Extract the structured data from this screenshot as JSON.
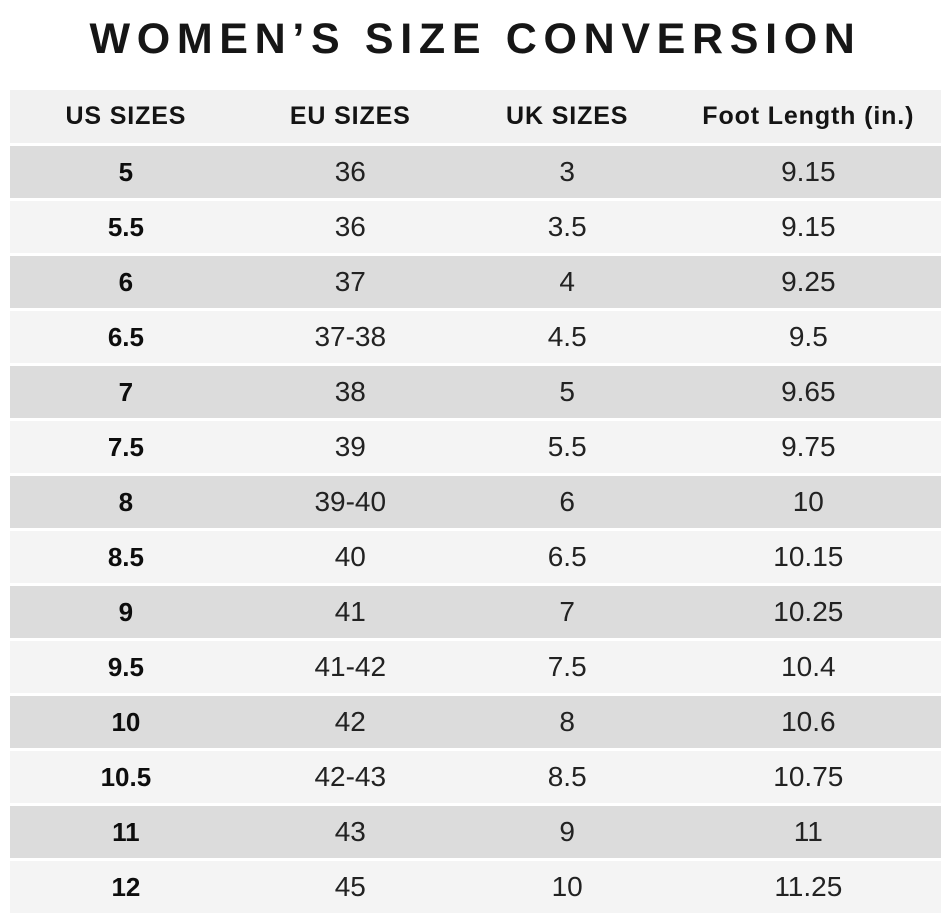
{
  "title": "WOMEN’S SIZE CONVERSION",
  "colors": {
    "background": "#ffffff",
    "header_bg": "#f1f1f1",
    "row_dark": "#dcdcdc",
    "row_light": "#f4f4f4",
    "row_separator": "#ffffff",
    "text": "#222222",
    "title_text": "#161616"
  },
  "chart_data": {
    "type": "table",
    "title": "WOMEN’S SIZE CONVERSION",
    "columns": [
      "US SIZES",
      "EU SIZES",
      "UK SIZES",
      "Foot Length (in.)"
    ],
    "rows": [
      [
        "5",
        "36",
        "3",
        "9.15"
      ],
      [
        "5.5",
        "36",
        "3.5",
        "9.15"
      ],
      [
        "6",
        "37",
        "4",
        "9.25"
      ],
      [
        "6.5",
        "37-38",
        "4.5",
        "9.5"
      ],
      [
        "7",
        "38",
        "5",
        "9.65"
      ],
      [
        "7.5",
        "39",
        "5.5",
        "9.75"
      ],
      [
        "8",
        "39-40",
        "6",
        "10"
      ],
      [
        "8.5",
        "40",
        "6.5",
        "10.15"
      ],
      [
        "9",
        "41",
        "7",
        "10.25"
      ],
      [
        "9.5",
        "41-42",
        "7.5",
        "10.4"
      ],
      [
        "10",
        "42",
        "8",
        "10.6"
      ],
      [
        "10.5",
        "42-43",
        "8.5",
        "10.75"
      ],
      [
        "11",
        "43",
        "9",
        "11"
      ],
      [
        "12",
        "45",
        "10",
        "11.25"
      ]
    ],
    "layout": {
      "row_striping": "alternating dark/light starting dark",
      "grid": "off",
      "alignment": "center"
    }
  }
}
